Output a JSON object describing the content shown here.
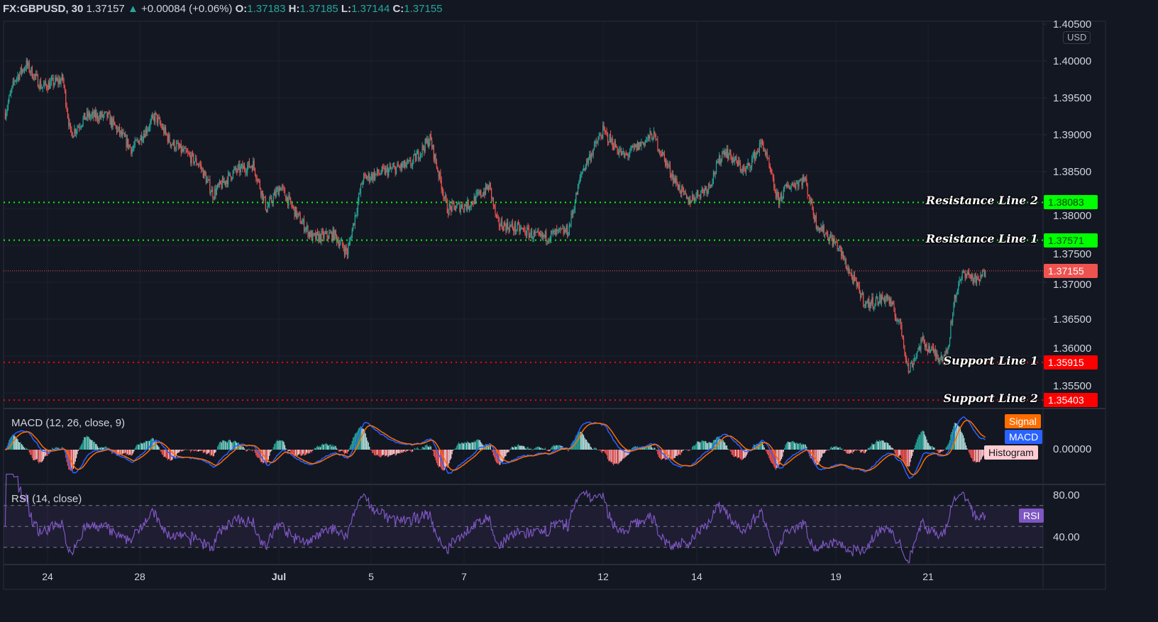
{
  "header": {
    "symbol": "FX:GBPUSD, 30",
    "last": "1.37157",
    "change": "+0.00084 (+0.06%)",
    "o_label": "O:",
    "o": "1.37183",
    "h_label": "H:",
    "h": "1.37185",
    "l_label": "L:",
    "l": "1.37144",
    "c_label": "C:",
    "c": "1.37155",
    "up_icon": "triangle-up"
  },
  "currency": "USD",
  "colors": {
    "up": "#26a69a",
    "down": "#ef5350",
    "resistance": "#00ff00",
    "support": "#ff0000",
    "macd": "#2962ff",
    "signal": "#ff6d00",
    "rsi": "#7e57c2",
    "background": "#131722"
  },
  "chart_data": {
    "type": "candlestick",
    "interval": "30",
    "price_ticks": [
      "1.40500",
      "1.40000",
      "1.39500",
      "1.39000",
      "1.38500",
      "1.38000",
      "1.37500",
      "1.37000",
      "1.36500",
      "1.36000",
      "1.35500"
    ],
    "time_ticks": [
      "24",
      "28",
      "Jul",
      "5",
      "7",
      "12",
      "14",
      "19",
      "21"
    ],
    "approx_close_path": [
      [
        "06-23 02:00",
        1.393
      ],
      [
        "06-23 07:00",
        1.3975
      ],
      [
        "06-23 13:00",
        1.3995
      ],
      [
        "06-23 21:00",
        1.3965
      ],
      [
        "06-24 08:00",
        1.3975
      ],
      [
        "06-24 12:00",
        1.39
      ],
      [
        "06-24 20:00",
        1.3925
      ],
      [
        "06-25 07:00",
        1.3925
      ],
      [
        "06-25 20:00",
        1.388
      ],
      [
        "06-28 08:00",
        1.3925
      ],
      [
        "06-28 16:00",
        1.389
      ],
      [
        "06-29 07:00",
        1.386
      ],
      [
        "06-29 14:00",
        1.382
      ],
      [
        "06-30 01:00",
        1.385
      ],
      [
        "06-30 11:00",
        1.386
      ],
      [
        "06-30 18:00",
        1.38
      ],
      [
        "07-01 01:00",
        1.383
      ],
      [
        "07-01 10:00",
        1.379
      ],
      [
        "07-01 18:00",
        1.376
      ],
      [
        "07-02 05:00",
        1.3765
      ],
      [
        "07-02 12:00",
        1.374
      ],
      [
        "07-02 20:00",
        1.384
      ],
      [
        "07-05 07:00",
        1.385
      ],
      [
        "07-05 21:00",
        1.386
      ],
      [
        "07-06 07:00",
        1.3895
      ],
      [
        "07-06 16:00",
        1.38
      ],
      [
        "07-07 03:00",
        1.3805
      ],
      [
        "07-07 14:00",
        1.383
      ],
      [
        "07-07 18:00",
        1.378
      ],
      [
        "07-08 08:00",
        1.377
      ],
      [
        "07-08 16:00",
        1.376
      ],
      [
        "07-09 07:00",
        1.377
      ],
      [
        "07-09 14:00",
        1.385
      ],
      [
        "07-12 01:00",
        1.3905
      ],
      [
        "07-12 12:00",
        1.387
      ],
      [
        "07-13 03:00",
        1.39
      ],
      [
        "07-13 14:00",
        1.384
      ],
      [
        "07-13 21:00",
        1.381
      ],
      [
        "07-14 08:00",
        1.383
      ],
      [
        "07-14 16:00",
        1.388
      ],
      [
        "07-15 03:00",
        1.385
      ],
      [
        "07-15 12:00",
        1.389
      ],
      [
        "07-15 20:00",
        1.381
      ],
      [
        "07-16 01:00",
        1.383
      ],
      [
        "07-16 10:00",
        1.384
      ],
      [
        "07-16 16:00",
        1.378
      ],
      [
        "07-19 03:00",
        1.375
      ],
      [
        "07-19 10:00",
        1.371
      ],
      [
        "07-19 18:00",
        1.367
      ],
      [
        "07-20 05:00",
        1.368
      ],
      [
        "07-20 12:00",
        1.364
      ],
      [
        "07-20 16:00",
        1.358
      ],
      [
        "07-20 23:00",
        1.362
      ],
      [
        "07-21 07:00",
        1.36
      ],
      [
        "07-21 12:00",
        1.36
      ],
      [
        "07-21 16:00",
        1.368
      ],
      [
        "07-21 21:00",
        1.3715
      ],
      [
        "07-22 04:00",
        1.37
      ],
      [
        "07-22 08:00",
        1.37155
      ]
    ],
    "current_price": "1.37155",
    "levels": [
      {
        "name": "Resistance Line 2",
        "value": "1.38083",
        "kind": "resistance"
      },
      {
        "name": "Resistance Line 1",
        "value": "1.37571",
        "kind": "resistance"
      },
      {
        "name": "Support Line 1",
        "value": "1.35915",
        "kind": "support"
      },
      {
        "name": "Support Line 2",
        "value": "1.35403",
        "kind": "support"
      }
    ],
    "macd": {
      "title": "MACD (12, 26, close, 9)",
      "zero_label": "0.00000",
      "legend": [
        "Signal",
        "MACD",
        "Histogram"
      ]
    },
    "rsi": {
      "title": "RSI (14, close)",
      "ticks": [
        "80.00",
        "40.00"
      ],
      "bands": [
        70,
        50,
        30
      ],
      "legend": "RSI"
    }
  }
}
